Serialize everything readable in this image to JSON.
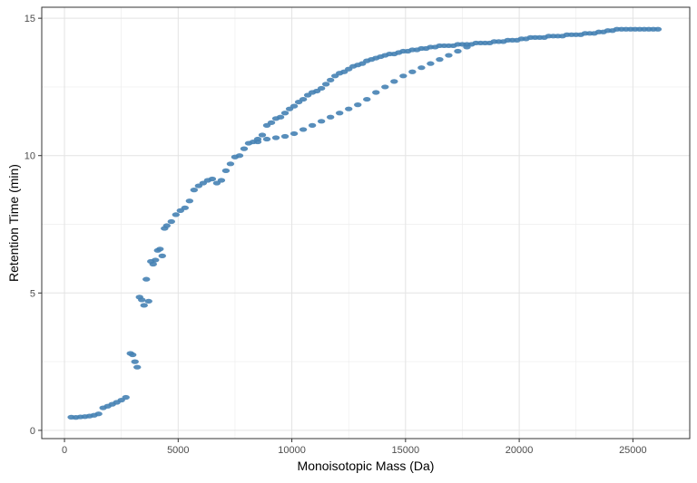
{
  "chart_data": {
    "type": "scatter",
    "title": "",
    "xlabel": "Monoisotopic Mass (Da)",
    "ylabel": "Retention Time (min)",
    "xlim": [
      -1000,
      27500
    ],
    "ylim": [
      -0.3,
      15.4
    ],
    "xticks": [
      0,
      5000,
      10000,
      15000,
      20000,
      25000
    ],
    "yticks": [
      0,
      5,
      10,
      15
    ],
    "xtick_labels": [
      "0",
      "5000",
      "10000",
      "15000",
      "20000",
      "25000"
    ],
    "ytick_labels": [
      "0",
      "5",
      "10",
      "15"
    ],
    "grid": true,
    "legend": "none",
    "point_color": "#4682B4",
    "series": [
      {
        "x": [
          300,
          500,
          700,
          900,
          1100,
          1300,
          1500,
          1700,
          1900,
          2100,
          2300,
          2500,
          2700,
          2900,
          3000,
          3100,
          3200,
          3300,
          3400,
          3500,
          3600,
          3700,
          3800,
          3900,
          4000,
          4100,
          4200,
          4300,
          4400,
          4500,
          4700,
          4900,
          5100,
          5300,
          5500,
          5700,
          5900,
          6100,
          6300,
          6500,
          6700,
          6900,
          7100,
          7300,
          7500,
          7700,
          7900,
          8100,
          8300,
          8500,
          8700,
          8900,
          9100,
          9300,
          9500,
          9700,
          9900,
          10100,
          10300,
          10500,
          10700,
          10900,
          11100,
          11300,
          11500,
          11700,
          11900,
          12100,
          12300,
          12500,
          12700,
          12900,
          13100,
          13300,
          13500,
          13700,
          13900,
          14100,
          14300,
          14500,
          14700,
          14900,
          15100,
          15300,
          15500,
          15700,
          15900,
          16100,
          16300,
          16500,
          16700,
          16900,
          17100,
          17300,
          17500,
          17700,
          17900,
          18100,
          18300,
          18500,
          18700,
          18900,
          19100,
          19300,
          19500,
          19700,
          19900,
          20100,
          20300,
          20500,
          20700,
          20900,
          21100,
          21300,
          21500,
          21700,
          21900,
          22100,
          22300,
          22500,
          22700,
          22900,
          23100,
          23300,
          23500,
          23700,
          23900,
          24100,
          24300,
          24500,
          24700,
          24900,
          25100,
          25300,
          25500,
          25700,
          25900,
          26100
        ],
        "y": [
          0.48,
          0.47,
          0.49,
          0.5,
          0.52,
          0.55,
          0.6,
          0.82,
          0.88,
          0.95,
          1.02,
          1.1,
          1.2,
          2.8,
          2.75,
          2.5,
          2.3,
          4.85,
          4.75,
          4.55,
          5.5,
          4.7,
          6.15,
          6.05,
          6.2,
          6.55,
          6.6,
          6.35,
          7.35,
          7.45,
          7.6,
          7.85,
          8.0,
          8.1,
          8.35,
          8.75,
          8.9,
          9.0,
          9.1,
          9.15,
          9.0,
          9.1,
          9.45,
          9.7,
          9.95,
          10.0,
          10.25,
          10.45,
          10.5,
          10.6,
          10.75,
          11.1,
          11.2,
          11.35,
          11.4,
          11.55,
          11.7,
          11.8,
          11.95,
          12.05,
          12.2,
          12.3,
          12.35,
          12.45,
          12.6,
          12.75,
          12.9,
          13.0,
          13.05,
          13.15,
          13.25,
          13.3,
          13.35,
          13.45,
          13.5,
          13.55,
          13.6,
          13.65,
          13.7,
          13.7,
          13.75,
          13.8,
          13.8,
          13.85,
          13.85,
          13.9,
          13.9,
          13.95,
          13.95,
          14.0,
          14.0,
          14.0,
          14.0,
          14.05,
          14.05,
          14.05,
          14.05,
          14.1,
          14.1,
          14.1,
          14.1,
          14.15,
          14.15,
          14.15,
          14.2,
          14.2,
          14.2,
          14.25,
          14.25,
          14.3,
          14.3,
          14.3,
          14.3,
          14.35,
          14.35,
          14.35,
          14.35,
          14.4,
          14.4,
          14.4,
          14.4,
          14.45,
          14.45,
          14.45,
          14.5,
          14.5,
          14.55,
          14.55,
          14.6,
          14.6,
          14.6,
          14.6,
          14.6,
          14.6,
          14.6,
          14.6,
          14.6,
          14.6
        ]
      },
      {
        "x": [
          8500,
          8900,
          9300,
          9700,
          10100,
          10500,
          10900,
          11300,
          11700,
          12100,
          12500,
          12900,
          13300,
          13700,
          14100,
          14500,
          14900,
          15300,
          15700,
          16100,
          16500,
          16900,
          17300,
          17700
        ],
        "y": [
          10.5,
          10.6,
          10.65,
          10.7,
          10.8,
          10.95,
          11.1,
          11.25,
          11.4,
          11.55,
          11.7,
          11.85,
          12.05,
          12.3,
          12.5,
          12.7,
          12.9,
          13.05,
          13.2,
          13.35,
          13.5,
          13.65,
          13.8,
          13.95
        ]
      }
    ]
  }
}
